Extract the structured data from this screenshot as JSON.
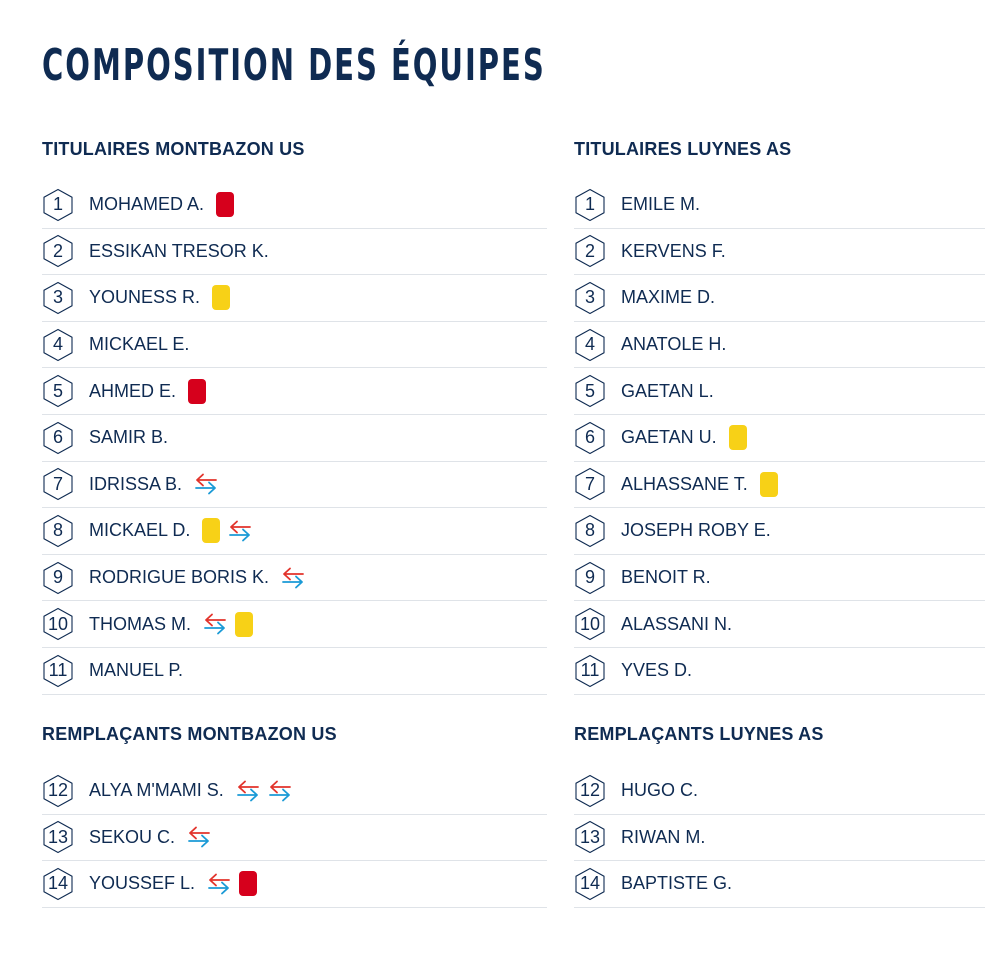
{
  "page_title": "COMPOSITION DES ÉQUIPES",
  "colors": {
    "text": "#0f2b52",
    "red_card": "#d6001c",
    "yellow_card": "#f7d117",
    "sub_out": "#e2332b",
    "sub_in": "#1a9ad6",
    "divider": "#dfe3e8"
  },
  "sections": [
    {
      "title": "TITULAIRES MONTBAZON US",
      "players": [
        {
          "number": "1",
          "name": "MOHAMED A.",
          "events": [
            "red-card"
          ]
        },
        {
          "number": "2",
          "name": "ESSIKAN TRESOR K.",
          "events": []
        },
        {
          "number": "3",
          "name": "YOUNESS R.",
          "events": [
            "yellow-card"
          ]
        },
        {
          "number": "4",
          "name": "MICKAEL E.",
          "events": []
        },
        {
          "number": "5",
          "name": "AHMED E.",
          "events": [
            "red-card"
          ]
        },
        {
          "number": "6",
          "name": "SAMIR B.",
          "events": []
        },
        {
          "number": "7",
          "name": "IDRISSA B.",
          "events": [
            "substitution"
          ]
        },
        {
          "number": "8",
          "name": "MICKAEL D.",
          "events": [
            "yellow-card",
            "substitution"
          ]
        },
        {
          "number": "9",
          "name": "RODRIGUE BORIS K.",
          "events": [
            "substitution"
          ]
        },
        {
          "number": "10",
          "name": "THOMAS M.",
          "events": [
            "substitution",
            "yellow-card"
          ]
        },
        {
          "number": "11",
          "name": "MANUEL P.",
          "events": []
        }
      ]
    },
    {
      "title": "TITULAIRES LUYNES AS",
      "players": [
        {
          "number": "1",
          "name": "EMILE M.",
          "events": []
        },
        {
          "number": "2",
          "name": "KERVENS F.",
          "events": []
        },
        {
          "number": "3",
          "name": "MAXIME D.",
          "events": []
        },
        {
          "number": "4",
          "name": "ANATOLE H.",
          "events": []
        },
        {
          "number": "5",
          "name": "GAETAN L.",
          "events": []
        },
        {
          "number": "6",
          "name": "GAETAN U.",
          "events": [
            "yellow-card"
          ]
        },
        {
          "number": "7",
          "name": "ALHASSANE T.",
          "events": [
            "yellow-card"
          ]
        },
        {
          "number": "8",
          "name": "JOSEPH ROBY E.",
          "events": []
        },
        {
          "number": "9",
          "name": "BENOIT R.",
          "events": []
        },
        {
          "number": "10",
          "name": "ALASSANI N.",
          "events": []
        },
        {
          "number": "11",
          "name": "YVES D.",
          "events": []
        }
      ]
    },
    {
      "title": "REMPLAÇANTS MONTBAZON US",
      "players": [
        {
          "number": "12",
          "name": "ALYA M'MAMI S.",
          "events": [
            "substitution",
            "substitution"
          ]
        },
        {
          "number": "13",
          "name": "SEKOU C.",
          "events": [
            "substitution"
          ]
        },
        {
          "number": "14",
          "name": "YOUSSEF L.",
          "events": [
            "substitution",
            "red-card"
          ]
        }
      ]
    },
    {
      "title": "REMPLAÇANTS LUYNES AS",
      "players": [
        {
          "number": "12",
          "name": "HUGO C.",
          "events": []
        },
        {
          "number": "13",
          "name": "RIWAN M.",
          "events": []
        },
        {
          "number": "14",
          "name": "BAPTISTE G.",
          "events": []
        }
      ]
    }
  ]
}
